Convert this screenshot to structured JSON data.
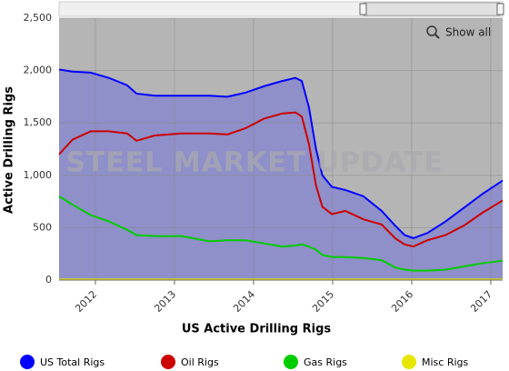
{
  "chart_data": {
    "type": "line",
    "xlabel": "US Active Drilling Rigs",
    "ylabel": "Active Drilling Rigs",
    "watermark": "STEEL MARKET UPDATE",
    "button": "Show all",
    "x": [
      2011.54,
      2011.71,
      2011.94,
      2012.17,
      2012.4,
      2012.52,
      2012.75,
      2013.09,
      2013.44,
      2013.67,
      2013.9,
      2014.13,
      2014.36,
      2014.53,
      2014.61,
      2014.7,
      2014.79,
      2014.87,
      2014.99,
      2015.16,
      2015.39,
      2015.62,
      2015.79,
      2015.91,
      2016.02,
      2016.2,
      2016.43,
      2016.66,
      2016.89,
      2017.15
    ],
    "series": [
      {
        "name": "US Total Rigs",
        "color": "#0000ff",
        "fill": "#8f8fc9",
        "values": [
          2010,
          1990,
          1980,
          1930,
          1860,
          1780,
          1760,
          1760,
          1760,
          1750,
          1790,
          1850,
          1900,
          1930,
          1900,
          1650,
          1250,
          1000,
          890,
          860,
          800,
          660,
          520,
          430,
          400,
          450,
          560,
          690,
          820,
          950
        ]
      },
      {
        "name": "Oil Rigs",
        "color": "#cc0000",
        "values": [
          1200,
          1340,
          1420,
          1420,
          1400,
          1330,
          1380,
          1400,
          1400,
          1390,
          1450,
          1540,
          1590,
          1600,
          1560,
          1300,
          900,
          700,
          630,
          660,
          580,
          530,
          400,
          340,
          320,
          380,
          430,
          520,
          640,
          760
        ]
      },
      {
        "name": "Gas Rigs",
        "color": "#00cc00",
        "values": [
          800,
          720,
          620,
          560,
          480,
          430,
          420,
          420,
          370,
          380,
          380,
          350,
          320,
          330,
          340,
          320,
          290,
          240,
          220,
          220,
          210,
          190,
          120,
          100,
          90,
          90,
          100,
          130,
          160,
          185
        ]
      },
      {
        "name": "Misc Rigs",
        "color": "#e6e600",
        "values": [
          5,
          5,
          5,
          5,
          5,
          5,
          5,
          5,
          5,
          5,
          5,
          5,
          5,
          5,
          5,
          5,
          5,
          5,
          5,
          5,
          5,
          5,
          5,
          5,
          5,
          5,
          5,
          5,
          5,
          5
        ]
      }
    ],
    "xlim": [
      2011.54,
      2017.15
    ],
    "xticks": [
      2012,
      2013,
      2014,
      2015,
      2016,
      2017
    ],
    "ylim": [
      0,
      2500
    ],
    "yticks": [
      0,
      500,
      {
        "value": 1000,
        "label": "1,000"
      },
      {
        "value": 1500,
        "label": "1,500"
      },
      {
        "value": 2000,
        "label": "2,000"
      },
      {
        "value": 2500,
        "label": "2,500"
      }
    ],
    "grid": true,
    "legend": "bottom"
  }
}
